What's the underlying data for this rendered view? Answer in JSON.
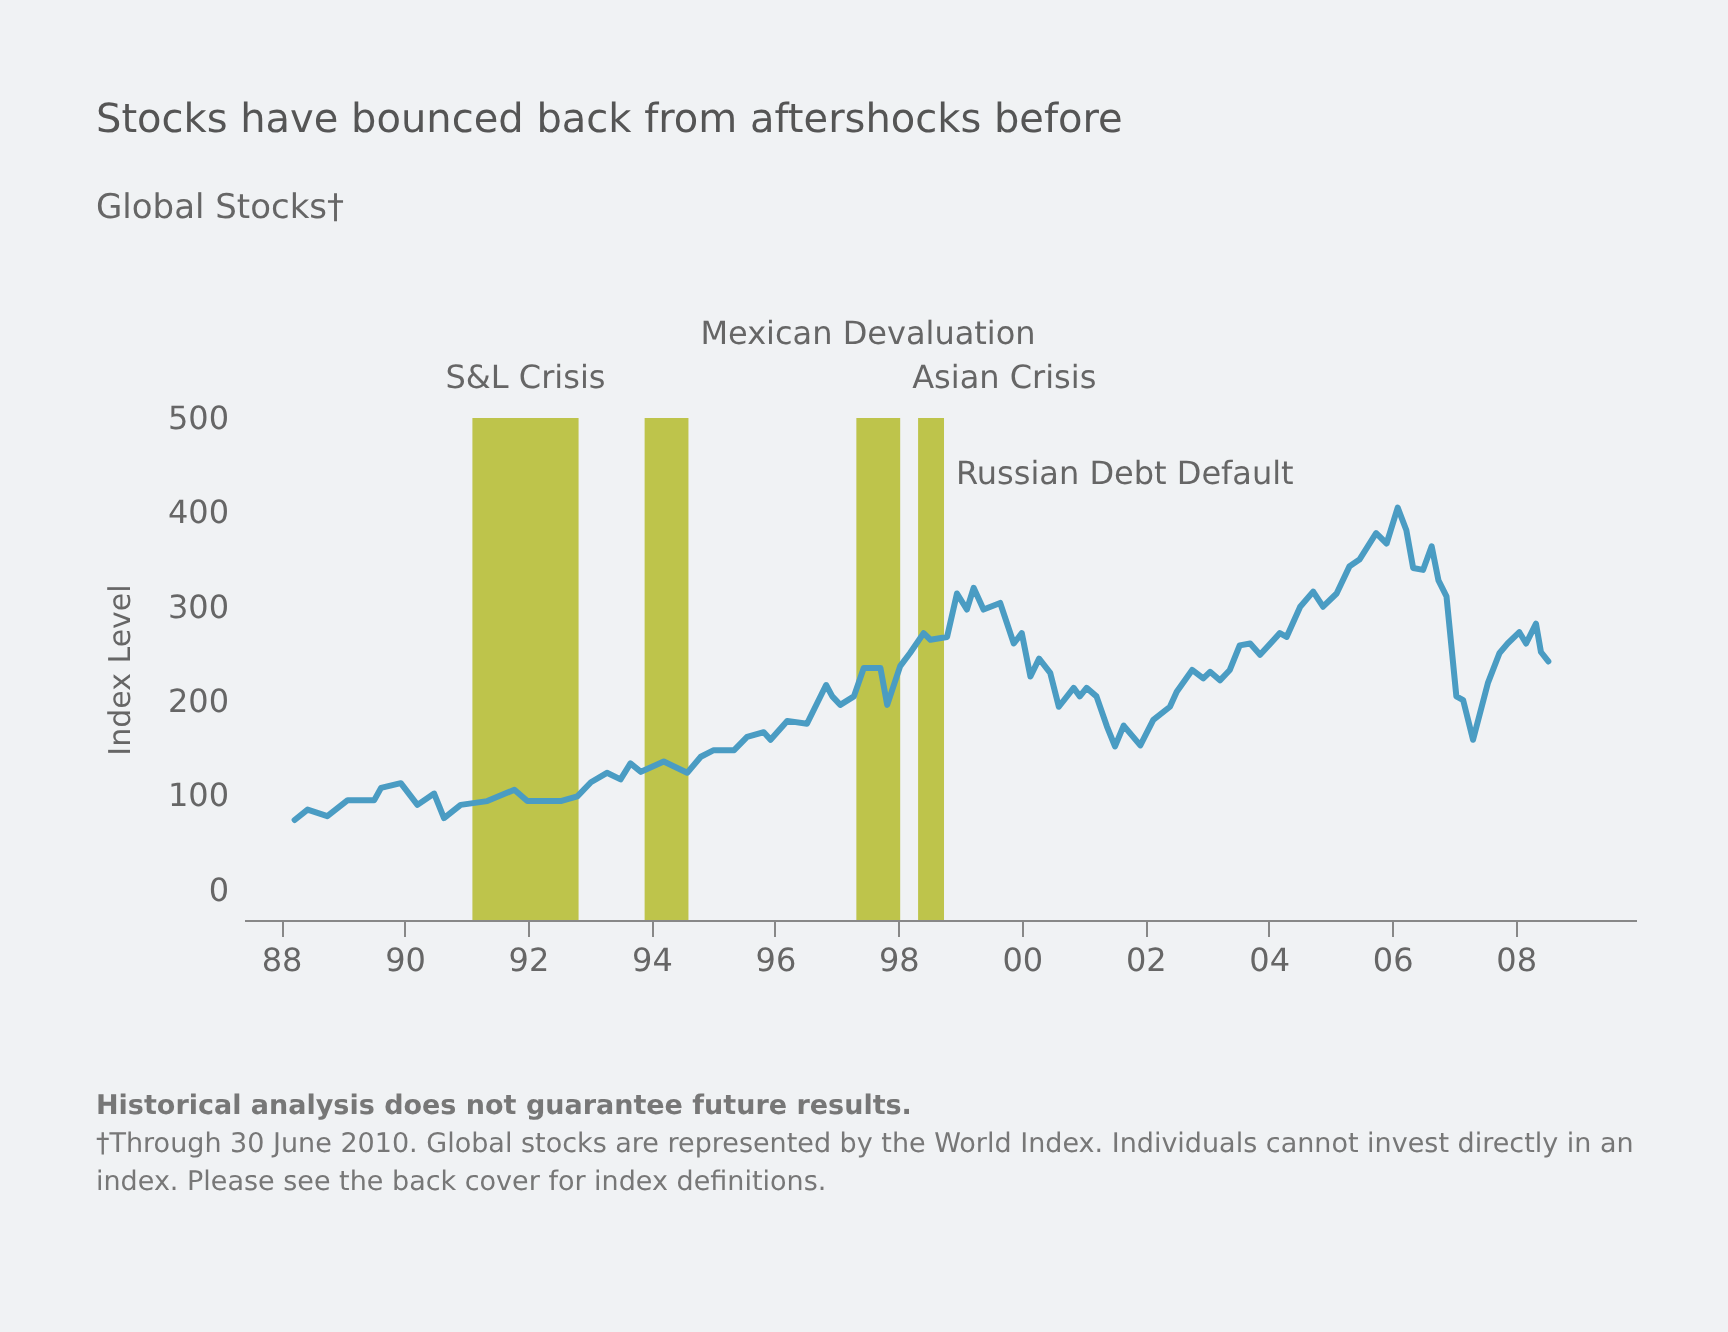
{
  "chart_data": {
    "type": "line",
    "title": "Stocks have bounced back from aftershocks before",
    "subtitle": "Global Stocks†",
    "ylabel": "Index Level",
    "annotations": [
      "Historical analysis does not guarantee future results.",
      "†Through 30 June 2010. Global stocks are represented by the World Index. Individuals cannot invest directly in an index. Please see the back cover for index definitions."
    ],
    "xlim": [
      1987.4,
      2009.95
    ],
    "ylim": [
      -32,
      500
    ],
    "xticks": [
      {
        "value": 1988,
        "label": "88"
      },
      {
        "value": 1990,
        "label": "90"
      },
      {
        "value": 1992,
        "label": "92"
      },
      {
        "value": 1994,
        "label": "94"
      },
      {
        "value": 1996,
        "label": "96"
      },
      {
        "value": 1998,
        "label": "98"
      },
      {
        "value": 2000,
        "label": "00"
      },
      {
        "value": 2002,
        "label": "02"
      },
      {
        "value": 2004,
        "label": "04"
      },
      {
        "value": 2006,
        "label": "06"
      },
      {
        "value": 2008,
        "label": "08"
      }
    ],
    "yticks": [
      0,
      100,
      200,
      300,
      400,
      500
    ],
    "bands": [
      {
        "axis": "x",
        "from": 1991.1,
        "to": 1992.82,
        "label": "S&L Crisis",
        "color": "#bec44b"
      },
      {
        "axis": "x",
        "from": 1993.89,
        "to": 1994.6,
        "label": "Mexican Devaluation",
        "color": "#bec44b"
      },
      {
        "axis": "x",
        "from": 1997.32,
        "to": 1998.03,
        "label": "Asian Crisis",
        "color": "#bec44b"
      },
      {
        "axis": "x",
        "from": 1998.32,
        "to": 1998.74,
        "label": "Russian Debt Default",
        "color": "#bec44b"
      }
    ],
    "series": [
      {
        "color": "#4a9cc3",
        "x": [
          1988.22,
          1988.43,
          1988.75,
          1989.08,
          1989.51,
          1989.62,
          1989.94,
          1990.21,
          1990.48,
          1990.64,
          1990.91,
          1991.34,
          1991.78,
          1991.99,
          1992.53,
          1992.8,
          1993.02,
          1993.28,
          1993.5,
          1993.66,
          1993.83,
          1994.2,
          1994.58,
          1994.8,
          1995.01,
          1995.34,
          1995.55,
          1995.82,
          1995.93,
          1996.2,
          1996.52,
          1996.83,
          1996.93,
          1997.06,
          1997.28,
          1997.44,
          1997.71,
          1997.82,
          1998.03,
          1998.19,
          1998.41,
          1998.52,
          1998.79,
          1998.95,
          1999.11,
          1999.22,
          1999.38,
          1999.65,
          1999.87,
          2000.0,
          2000.14,
          2000.28,
          2000.46,
          2000.6,
          2000.84,
          2000.94,
          2001.05,
          2001.21,
          2001.38,
          2001.51,
          2001.65,
          2001.92,
          2002.13,
          2002.4,
          2002.51,
          2002.76,
          2002.94,
          2003.05,
          2003.21,
          2003.37,
          2003.53,
          2003.7,
          2003.86,
          2004.18,
          2004.29,
          2004.51,
          2004.72,
          2004.88,
          2005.1,
          2005.31,
          2005.47,
          2005.74,
          2005.91,
          2006.09,
          2006.23,
          2006.34,
          2006.5,
          2006.64,
          2006.75,
          2006.88,
          2007.04,
          2007.15,
          2007.31,
          2007.55,
          2007.74,
          2007.87,
          2008.06,
          2008.17,
          2008.33,
          2008.41,
          2008.53
        ],
        "values": [
          74,
          85,
          78,
          95,
          95,
          108,
          113,
          90,
          102,
          76,
          90,
          94,
          106,
          94,
          94,
          99,
          114,
          124,
          117,
          134,
          125,
          136,
          124,
          141,
          148,
          148,
          162,
          167,
          159,
          179,
          176,
          217,
          205,
          196,
          205,
          235,
          235,
          196,
          237,
          251,
          272,
          265,
          268,
          314,
          297,
          320,
          297,
          304,
          261,
          272,
          226,
          245,
          230,
          194,
          214,
          205,
          214,
          205,
          173,
          152,
          174,
          153,
          180,
          194,
          210,
          233,
          224,
          231,
          222,
          233,
          259,
          261,
          249,
          272,
          268,
          300,
          316,
          300,
          314,
          343,
          350,
          378,
          367,
          405,
          381,
          341,
          339,
          364,
          328,
          311,
          205,
          201,
          159,
          219,
          251,
          261,
          273,
          261,
          282,
          252,
          242
        ]
      }
    ]
  }
}
